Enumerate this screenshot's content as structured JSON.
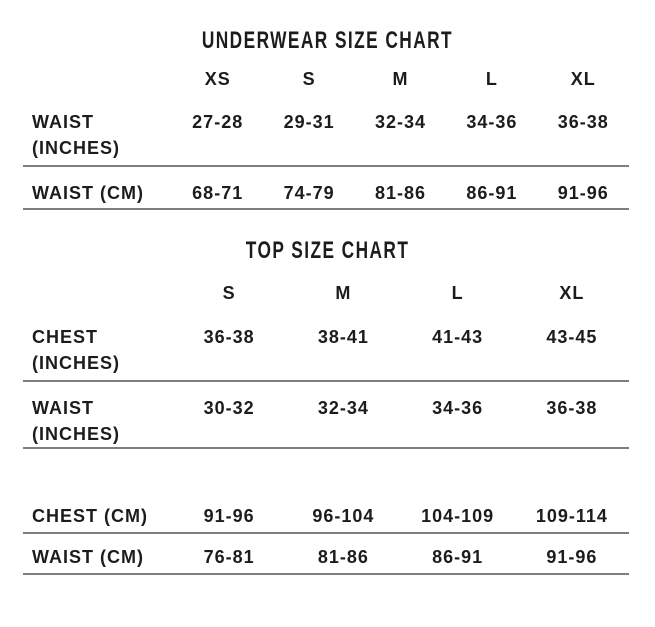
{
  "page": {
    "background_color": "#ffffff",
    "text_color": "#1c1c1c",
    "rule_color": "#7e7e7e"
  },
  "underwear_chart": {
    "title": "UNDERWEAR SIZE CHART",
    "columns": [
      "XS",
      "S",
      "M",
      "L",
      "XL"
    ],
    "rows": [
      {
        "label": "WAIST\n(INCHES)",
        "values": [
          "27-28",
          "29-31",
          "32-34",
          "34-36",
          "36-38"
        ]
      },
      {
        "label": "WAIST (CM)",
        "values": [
          "68-71",
          "74-79",
          "81-86",
          "86-91",
          "91-96"
        ]
      }
    ]
  },
  "top_chart": {
    "title": "TOP SIZE CHART",
    "columns": [
      "S",
      "M",
      "L",
      "XL"
    ],
    "rows": [
      {
        "label": "CHEST\n(INCHES)",
        "values": [
          "36-38",
          "38-41",
          "41-43",
          "43-45"
        ]
      },
      {
        "label": "WAIST\n(INCHES)",
        "values": [
          "30-32",
          "32-34",
          "34-36",
          "36-38"
        ]
      },
      {
        "label": "CHEST (CM)",
        "values": [
          "91-96",
          "96-104",
          "104-109",
          "109-114"
        ]
      },
      {
        "label": "WAIST (CM)",
        "values": [
          "76-81",
          "81-86",
          "86-91",
          "91-96"
        ]
      }
    ]
  }
}
